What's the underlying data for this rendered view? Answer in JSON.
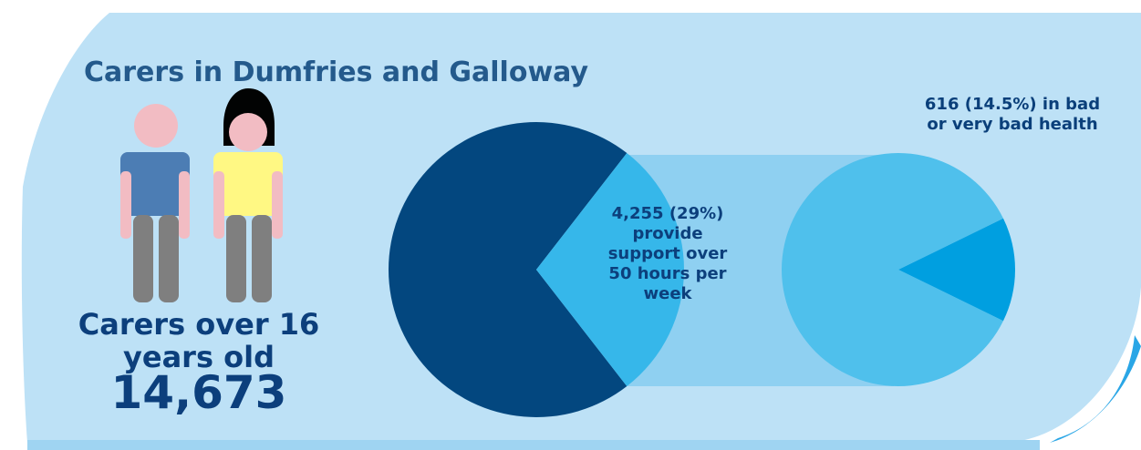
{
  "title": "Carers in Dumfries and Galloway",
  "carers": {
    "label": "Carers over 16 years old",
    "value": "14,673"
  },
  "chart_data": [
    {
      "type": "pie",
      "title": "",
      "total": 14673,
      "slices": [
        {
          "label": "4,255 (29%) provide support over 50 hours per week",
          "value": 4255,
          "percent": 29,
          "color": "#36b7ea"
        },
        {
          "label": "",
          "value": 10418,
          "percent": 71,
          "color": "#03477f"
        }
      ]
    },
    {
      "type": "pie",
      "title": "",
      "total": 4255,
      "slices": [
        {
          "label": "616 (14.5%) in bad or very bad health",
          "value": 616,
          "percent": 14.5,
          "color": "#009fe0"
        },
        {
          "label": "",
          "value": 3639,
          "percent": 85.5,
          "color": "#4fc0ec"
        }
      ]
    }
  ],
  "colors": {
    "panel": "#bde1f6",
    "panel_bottom": "#a9d9f5",
    "curve_accent": "#2aa6e6",
    "connector": "#8fd0f1",
    "title": "#245a8c",
    "dark_blue": "#0c3f7c",
    "man_skin": "#f2bcc3",
    "man_shirt": "#4c7db4",
    "woman_skin": "#f2bcc3",
    "woman_shirt": "#fff883",
    "woman_hair": "#020303",
    "legs": "#7f7f7f"
  },
  "icons": [
    "man-figure-icon",
    "woman-figure-icon"
  ]
}
